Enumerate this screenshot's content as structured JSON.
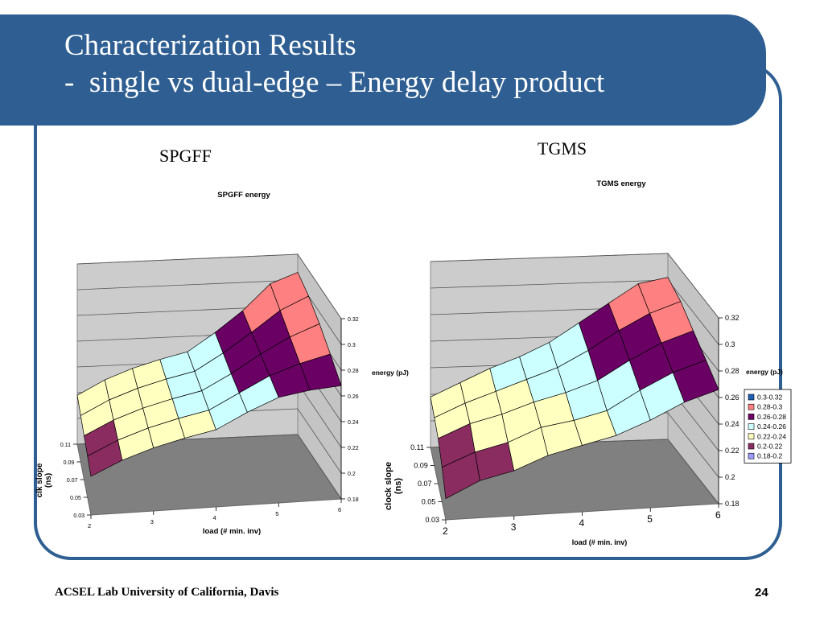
{
  "slide": {
    "title_line1": "Characterization Results",
    "title_line2": "-  single vs dual-edge – Energy delay product",
    "footer_left": "ACSEL Lab University of California, Davis",
    "page_number": "24",
    "colors": {
      "brand": "#2f5f92"
    }
  },
  "headings": {
    "left": "SPGFF",
    "right": "TGMS"
  },
  "chart_data": [
    {
      "type": "surface3d",
      "title": "SPGFF energy",
      "xlabel": "load (# min. inv)",
      "ylabel": "clk slope (ns)",
      "zlabel": "energy (pJ)",
      "x_ticks": [
        "2",
        "3",
        "4",
        "5",
        "6"
      ],
      "y_ticks": [
        "0.03",
        "0.05",
        "0.07",
        "0.09",
        "0.11"
      ],
      "z_ticks": [
        "0.18",
        "0.2",
        "0.22",
        "0.24",
        "0.26",
        "0.28",
        "0.3",
        "0.32"
      ],
      "zlim": [
        0.18,
        0.32
      ],
      "legend": [],
      "surface": [
        {
          "x": 2.0,
          "energy": [
            0.21,
            0.212,
            0.214,
            0.216,
            0.218
          ]
        },
        {
          "x": 2.5,
          "energy": [
            0.221,
            0.223,
            0.225,
            0.227,
            0.229
          ]
        },
        {
          "x": 3.0,
          "energy": [
            0.229,
            0.231,
            0.233,
            0.235,
            0.237
          ]
        },
        {
          "x": 3.5,
          "energy": [
            0.235,
            0.237,
            0.239,
            0.241,
            0.243
          ]
        },
        {
          "x": 4.0,
          "energy": [
            0.24,
            0.242,
            0.244,
            0.246,
            0.248
          ]
        },
        {
          "x": 4.5,
          "energy": [
            0.252,
            0.254,
            0.256,
            0.259,
            0.262
          ]
        },
        {
          "x": 5.0,
          "energy": [
            0.262,
            0.266,
            0.27,
            0.274,
            0.278
          ]
        },
        {
          "x": 5.5,
          "energy": [
            0.266,
            0.274,
            0.282,
            0.29,
            0.298
          ]
        },
        {
          "x": 6.0,
          "energy": [
            0.268,
            0.28,
            0.291,
            0.3,
            0.306
          ]
        }
      ]
    },
    {
      "type": "surface3d",
      "title": "TGMS energy",
      "xlabel": "load (# min. inv)",
      "ylabel": "clock slope (ns)",
      "zlabel": "energy (pJ)",
      "x_ticks": [
        "2",
        "3",
        "4",
        "5",
        "6"
      ],
      "y_ticks": [
        "0.03",
        "0.05",
        "0.07",
        "0.09",
        "0.11"
      ],
      "z_ticks": [
        "0.18",
        "0.2",
        "0.22",
        "0.24",
        "0.26",
        "0.28",
        "0.3",
        "0.32"
      ],
      "zlim": [
        0.18,
        0.32
      ],
      "legend": [
        "0.3-0.32",
        "0.28-0.3",
        "0.26-0.28",
        "0.24-0.26",
        "0.22-0.24",
        "0.2-0.22",
        "0.18-0.2"
      ],
      "legend_colors": [
        "#1f5fb0",
        "#ff8080",
        "#6b0064",
        "#ccffff",
        "#ffffc0",
        "#8a2c60",
        "#9b9bff"
      ],
      "legend_position": "right",
      "surface": [
        {
          "x": 2.0,
          "energy": [
            0.196,
            0.206,
            0.214,
            0.216,
            0.218
          ]
        },
        {
          "x": 2.5,
          "energy": [
            0.208,
            0.216,
            0.224,
            0.226,
            0.228
          ]
        },
        {
          "x": 3.0,
          "energy": [
            0.214,
            0.222,
            0.23,
            0.234,
            0.238
          ]
        },
        {
          "x": 3.5,
          "energy": [
            0.224,
            0.232,
            0.238,
            0.242,
            0.246
          ]
        },
        {
          "x": 4.0,
          "energy": [
            0.23,
            0.236,
            0.244,
            0.25,
            0.256
          ]
        },
        {
          "x": 4.5,
          "energy": [
            0.236,
            0.242,
            0.252,
            0.262,
            0.27
          ]
        },
        {
          "x": 5.0,
          "energy": [
            0.246,
            0.256,
            0.266,
            0.276,
            0.284
          ]
        },
        {
          "x": 5.5,
          "energy": [
            0.258,
            0.268,
            0.278,
            0.288,
            0.298
          ]
        },
        {
          "x": 6.0,
          "energy": [
            0.266,
            0.276,
            0.286,
            0.296,
            0.302
          ]
        }
      ]
    }
  ]
}
